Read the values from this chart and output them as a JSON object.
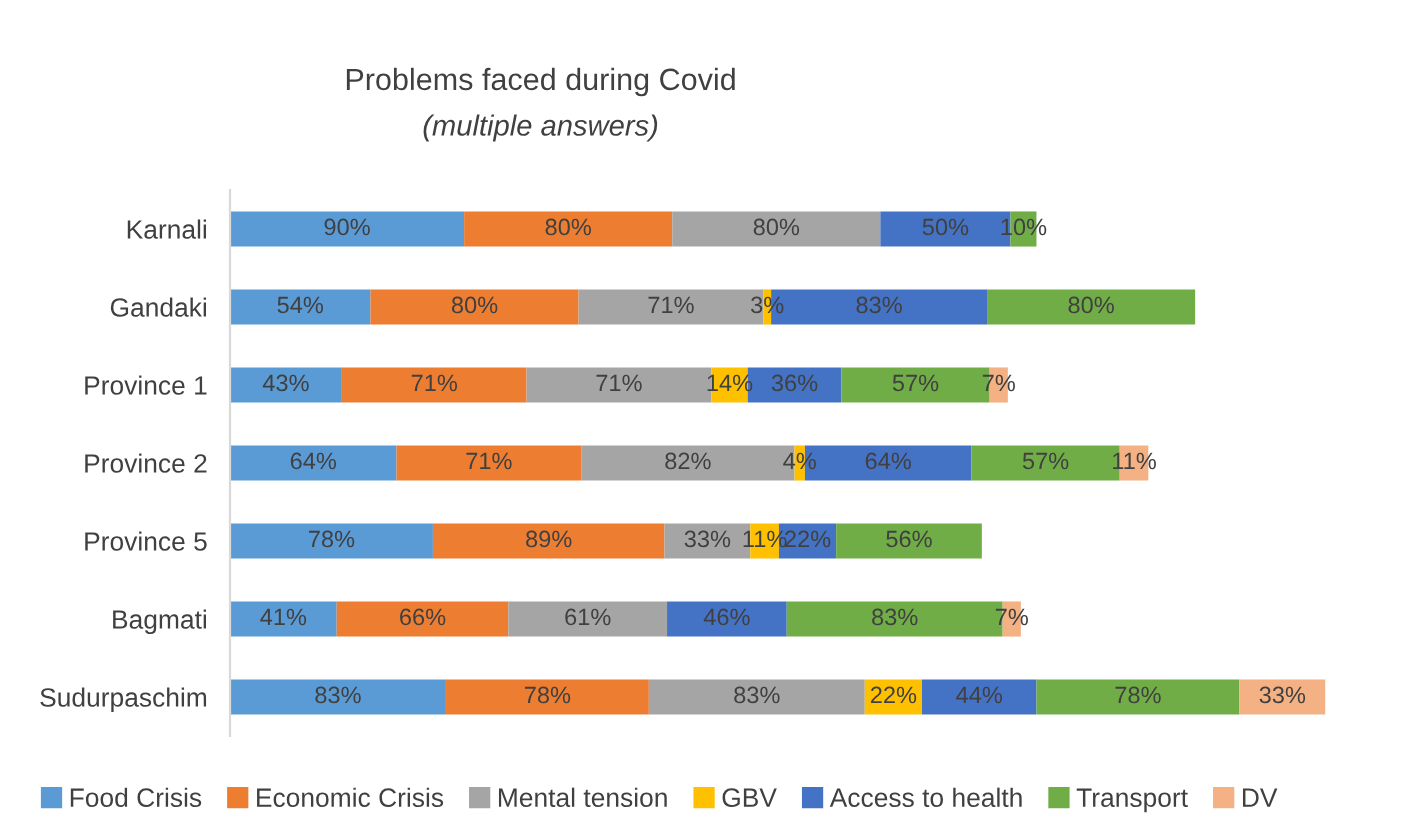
{
  "chart_data": {
    "type": "bar",
    "orientation": "horizontal",
    "stacked": true,
    "title": "Problems faced during Covid",
    "subtitle": "(multiple answers)",
    "legend": "bottom",
    "grid": false,
    "categories": [
      "Karnali",
      "Gandaki",
      "Province 1",
      "Province 2",
      "Province 5",
      "Bagmati",
      "Sudurpaschim"
    ],
    "series": [
      {
        "name": "Food Crisis",
        "color": "#5b9bd5",
        "values": [
          90,
          54,
          43,
          64,
          78,
          41,
          83
        ],
        "value_labels": [
          "90%",
          "54%",
          "43%",
          "64%",
          "78%",
          "41%",
          "83%"
        ]
      },
      {
        "name": "Economic Crisis",
        "color": "#ed7d31",
        "values": [
          80,
          80,
          71,
          71,
          89,
          66,
          78
        ],
        "value_labels": [
          "80%",
          "80%",
          "71%",
          "71%",
          "89%",
          "66%",
          "78%"
        ]
      },
      {
        "name": "Mental tension",
        "color": "#a5a5a5",
        "values": [
          80,
          71,
          71,
          82,
          33,
          61,
          83
        ],
        "value_labels": [
          "80%",
          "71%",
          "71%",
          "82%",
          "33%",
          "61%",
          "83%"
        ]
      },
      {
        "name": "GBV",
        "color": "#ffc000",
        "values": [
          null,
          3,
          14,
          4,
          11,
          null,
          22
        ],
        "value_labels": [
          null,
          "3%",
          "14%",
          "4%",
          "11%",
          null,
          "22%"
        ]
      },
      {
        "name": "Access to health",
        "color": "#4472c4",
        "values": [
          50,
          83,
          36,
          64,
          22,
          46,
          44
        ],
        "value_labels": [
          "50%",
          "83%",
          "36%",
          "64%",
          "22%",
          "46%",
          "44%"
        ]
      },
      {
        "name": "Transport",
        "color": "#70ad47",
        "values": [
          10,
          80,
          57,
          57,
          56,
          83,
          78
        ],
        "value_labels": [
          "10%",
          "80%",
          "57%",
          "57%",
          "56%",
          "83%",
          "78%"
        ]
      },
      {
        "name": "DV",
        "color": "#f4b183",
        "values": [
          null,
          null,
          7,
          11,
          null,
          7,
          33
        ],
        "value_labels": [
          null,
          null,
          "7%",
          "11%",
          null,
          "7%",
          "33%"
        ]
      }
    ]
  }
}
